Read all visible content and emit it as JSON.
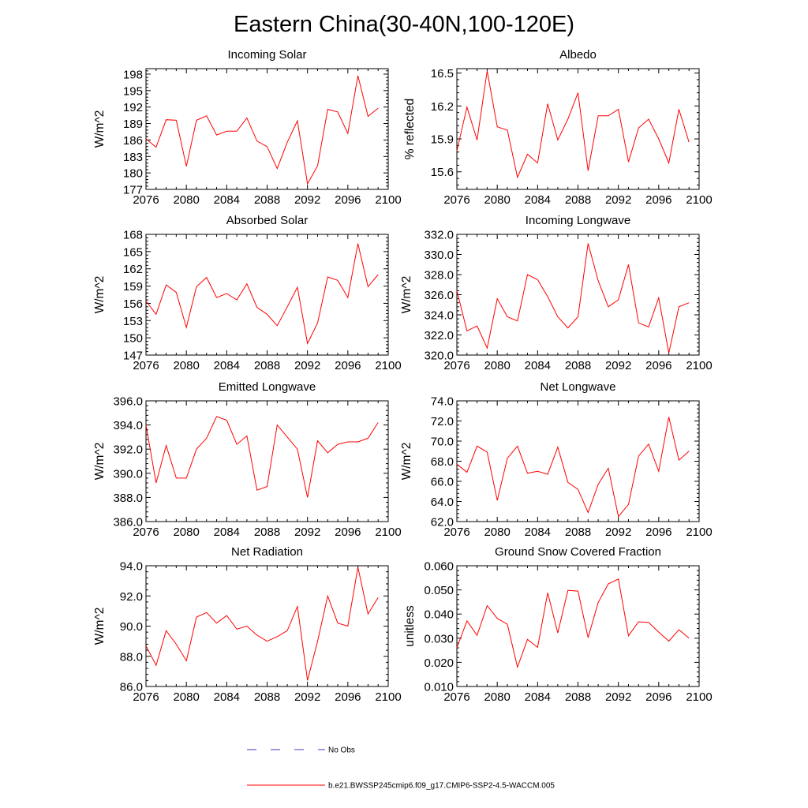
{
  "title": "Eastern China(30-40N,100-120E)",
  "line_color": "#ff0000",
  "obs_color": "#3b3bbf",
  "legend": {
    "obs_label": "No Obs",
    "model_label": "b.e21.BWSSP245cmip6.f09_g17.CMIP6-SSP2-4.5-WACCM.005"
  },
  "chart_data": [
    {
      "type": "line",
      "title": "Incoming Solar",
      "ylabel": "W/m^2",
      "xlim": [
        2076,
        2100
      ],
      "ylim": [
        177,
        199
      ],
      "xticks": [
        2076,
        2080,
        2084,
        2088,
        2092,
        2096,
        2100
      ],
      "yticks": [
        177,
        180,
        183,
        186,
        189,
        192,
        195,
        198
      ],
      "ytick_labels": [
        "177",
        "180",
        "183",
        "186",
        "189",
        "192",
        "195",
        "198"
      ],
      "x": [
        2076,
        2077,
        2078,
        2079,
        2080,
        2081,
        2082,
        2083,
        2084,
        2085,
        2086,
        2087,
        2088,
        2089,
        2090,
        2091,
        2092,
        2093,
        2094,
        2095,
        2096,
        2097,
        2098,
        2099
      ],
      "values": [
        186.2,
        184.7,
        189.7,
        189.6,
        181.2,
        189.6,
        190.4,
        186.9,
        187.6,
        187.6,
        190.0,
        185.8,
        184.8,
        180.8,
        185.6,
        189.5,
        178.0,
        181.3,
        191.6,
        191.1,
        187.2,
        197.7,
        190.3,
        191.8
      ]
    },
    {
      "type": "line",
      "title": "Albedo",
      "ylabel": "% reflected",
      "xlim": [
        2076,
        2100
      ],
      "ylim": [
        15.44,
        16.54
      ],
      "xticks": [
        2076,
        2080,
        2084,
        2088,
        2092,
        2096,
        2100
      ],
      "yticks": [
        15.6,
        15.9,
        16.2,
        16.5
      ],
      "ytick_labels": [
        "15.6",
        "15.9",
        "16.2",
        "16.5"
      ],
      "x": [
        2076,
        2077,
        2078,
        2079,
        2080,
        2081,
        2082,
        2083,
        2084,
        2085,
        2086,
        2087,
        2088,
        2089,
        2090,
        2091,
        2092,
        2093,
        2094,
        2095,
        2096,
        2097,
        2098,
        2099
      ],
      "values": [
        15.79,
        16.19,
        15.89,
        16.52,
        16.01,
        15.98,
        15.55,
        15.76,
        15.68,
        16.22,
        15.89,
        16.08,
        16.32,
        15.61,
        16.11,
        16.11,
        16.17,
        15.69,
        16.0,
        16.08,
        15.9,
        15.68,
        16.17,
        15.87
      ]
    },
    {
      "type": "line",
      "title": "Absorbed Solar",
      "ylabel": "W/m^2",
      "xlim": [
        2076,
        2100
      ],
      "ylim": [
        147,
        168
      ],
      "xticks": [
        2076,
        2080,
        2084,
        2088,
        2092,
        2096,
        2100
      ],
      "yticks": [
        147,
        150,
        153,
        156,
        159,
        162,
        165,
        168
      ],
      "ytick_labels": [
        "147",
        "150",
        "153",
        "156",
        "159",
        "162",
        "165",
        "168"
      ],
      "x": [
        2076,
        2077,
        2078,
        2079,
        2080,
        2081,
        2082,
        2083,
        2084,
        2085,
        2086,
        2087,
        2088,
        2089,
        2090,
        2091,
        2092,
        2093,
        2094,
        2095,
        2096,
        2097,
        2098,
        2099
      ],
      "values": [
        156.4,
        154.1,
        159.2,
        157.9,
        151.8,
        158.9,
        160.5,
        157.0,
        157.7,
        156.6,
        159.4,
        155.3,
        154.1,
        152.1,
        155.4,
        158.8,
        149.0,
        152.6,
        160.6,
        160.0,
        157.0,
        166.4,
        158.9,
        161.0
      ]
    },
    {
      "type": "line",
      "title": "Incoming Longwave",
      "ylabel": "W/m^2",
      "xlim": [
        2076,
        2100
      ],
      "ylim": [
        320.0,
        332.0
      ],
      "xticks": [
        2076,
        2080,
        2084,
        2088,
        2092,
        2096,
        2100
      ],
      "yticks": [
        320,
        322,
        324,
        326,
        328,
        330,
        332
      ],
      "ytick_labels": [
        "320.0",
        "322.0",
        "324.0",
        "326.0",
        "328.0",
        "330.0",
        "332.0"
      ],
      "x": [
        2076,
        2077,
        2078,
        2079,
        2080,
        2081,
        2082,
        2083,
        2084,
        2085,
        2086,
        2087,
        2088,
        2089,
        2090,
        2091,
        2092,
        2093,
        2094,
        2095,
        2096,
        2097,
        2098,
        2099
      ],
      "values": [
        326.4,
        322.4,
        322.9,
        320.7,
        325.6,
        323.8,
        323.4,
        328.0,
        327.5,
        325.8,
        323.8,
        322.7,
        323.8,
        331.1,
        327.4,
        324.8,
        325.5,
        329.0,
        323.2,
        322.8,
        325.7,
        320.2,
        324.8,
        325.2
      ]
    },
    {
      "type": "line",
      "title": "Emitted Longwave",
      "ylabel": "W/m^2",
      "xlim": [
        2076,
        2100
      ],
      "ylim": [
        386.0,
        396.0
      ],
      "xticks": [
        2076,
        2080,
        2084,
        2088,
        2092,
        2096,
        2100
      ],
      "yticks": [
        386,
        388,
        390,
        392,
        394,
        396
      ],
      "ytick_labels": [
        "386.0",
        "388.0",
        "390.0",
        "392.0",
        "394.0",
        "396.0"
      ],
      "x": [
        2076,
        2077,
        2078,
        2079,
        2080,
        2081,
        2082,
        2083,
        2084,
        2085,
        2086,
        2087,
        2088,
        2089,
        2090,
        2091,
        2092,
        2093,
        2094,
        2095,
        2096,
        2097,
        2098,
        2099
      ],
      "values": [
        394.0,
        389.2,
        392.3,
        389.6,
        389.6,
        392.0,
        392.9,
        394.7,
        394.4,
        392.4,
        393.1,
        388.6,
        388.9,
        394.0,
        393.0,
        392.0,
        388.0,
        392.7,
        391.7,
        392.4,
        392.6,
        392.6,
        392.9,
        394.2
      ]
    },
    {
      "type": "line",
      "title": "Net Longwave",
      "ylabel": "W/m^2",
      "xlim": [
        2076,
        2100
      ],
      "ylim": [
        62.0,
        74.0
      ],
      "xticks": [
        2076,
        2080,
        2084,
        2088,
        2092,
        2096,
        2100
      ],
      "yticks": [
        62,
        64,
        66,
        68,
        70,
        72,
        74
      ],
      "ytick_labels": [
        "62.0",
        "64.0",
        "66.0",
        "68.0",
        "70.0",
        "72.0",
        "74.0"
      ],
      "x": [
        2076,
        2077,
        2078,
        2079,
        2080,
        2081,
        2082,
        2083,
        2084,
        2085,
        2086,
        2087,
        2088,
        2089,
        2090,
        2091,
        2092,
        2093,
        2094,
        2095,
        2096,
        2097,
        2098,
        2099
      ],
      "values": [
        67.7,
        66.9,
        69.5,
        68.9,
        64.1,
        68.3,
        69.5,
        66.8,
        67.0,
        66.7,
        69.4,
        65.9,
        65.2,
        62.9,
        65.7,
        67.3,
        62.5,
        63.7,
        68.5,
        69.7,
        67.0,
        72.4,
        68.1,
        69.0
      ]
    },
    {
      "type": "line",
      "title": "Net Radiation",
      "ylabel": "W/m^2",
      "xlim": [
        2076,
        2100
      ],
      "ylim": [
        86.0,
        94.0
      ],
      "xticks": [
        2076,
        2080,
        2084,
        2088,
        2092,
        2096,
        2100
      ],
      "yticks": [
        86,
        88,
        90,
        92,
        94
      ],
      "ytick_labels": [
        "86.0",
        "88.0",
        "90.0",
        "92.0",
        "94.0"
      ],
      "x": [
        2076,
        2077,
        2078,
        2079,
        2080,
        2081,
        2082,
        2083,
        2084,
        2085,
        2086,
        2087,
        2088,
        2089,
        2090,
        2091,
        2092,
        2093,
        2094,
        2095,
        2096,
        2097,
        2098,
        2099
      ],
      "values": [
        88.7,
        87.4,
        89.7,
        88.8,
        87.7,
        90.6,
        90.9,
        90.2,
        90.7,
        89.8,
        90.0,
        89.4,
        89.0,
        89.3,
        89.7,
        91.3,
        86.4,
        89.0,
        92.0,
        90.2,
        90.0,
        93.9,
        90.8,
        91.9
      ]
    },
    {
      "type": "line",
      "title": "Ground Snow Covered Fraction",
      "ylabel": "unitless",
      "xlim": [
        2076,
        2100
      ],
      "ylim": [
        0.01,
        0.06
      ],
      "xticks": [
        2076,
        2080,
        2084,
        2088,
        2092,
        2096,
        2100
      ],
      "yticks": [
        0.01,
        0.02,
        0.03,
        0.04,
        0.05,
        0.06
      ],
      "ytick_labels": [
        "0.010",
        "0.020",
        "0.030",
        "0.040",
        "0.050",
        "0.060"
      ],
      "x": [
        2076,
        2077,
        2078,
        2079,
        2080,
        2081,
        2082,
        2083,
        2084,
        2085,
        2086,
        2087,
        2088,
        2089,
        2090,
        2091,
        2092,
        2093,
        2094,
        2095,
        2096,
        2097,
        2098,
        2099
      ],
      "values": [
        0.026,
        0.0372,
        0.0312,
        0.0435,
        0.0382,
        0.0358,
        0.018,
        0.0295,
        0.0262,
        0.0488,
        0.0322,
        0.0498,
        0.0495,
        0.0302,
        0.0448,
        0.0525,
        0.0545,
        0.031,
        0.0368,
        0.0365,
        0.0325,
        0.0288,
        0.0335,
        0.03
      ]
    }
  ]
}
